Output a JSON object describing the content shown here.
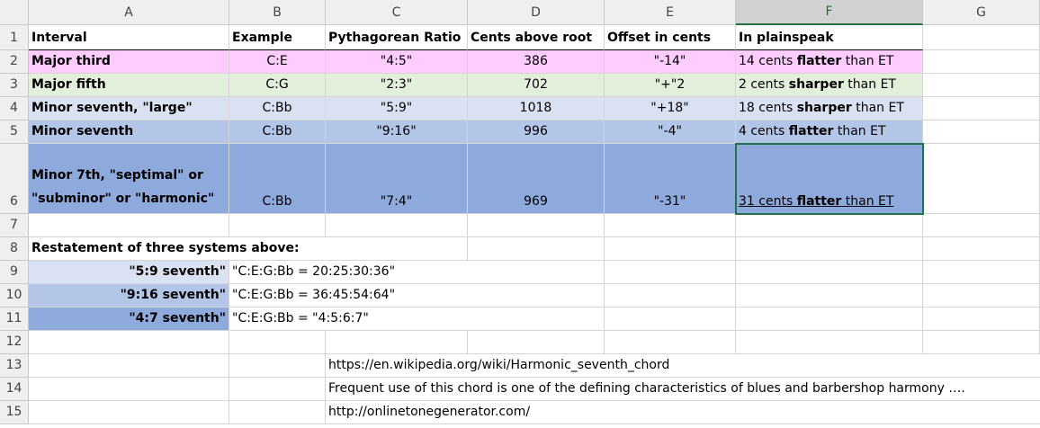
{
  "columns": [
    "A",
    "B",
    "C",
    "D",
    "E",
    "F",
    "G"
  ],
  "row_numbers": [
    "1",
    "2",
    "3",
    "4",
    "5",
    "6",
    "7",
    "8",
    "9",
    "10",
    "11",
    "12",
    "13",
    "14",
    "15"
  ],
  "header": [
    "Interval",
    "Example",
    "Pythagorean Ratio",
    "Cents above root",
    "Offset in cents",
    "In plainspeak"
  ],
  "rows": [
    {
      "interval": "Major third",
      "example": "C:E",
      "ratio": "\"4:5\"",
      "cents": 386,
      "offset": "\"-14\"",
      "plain": {
        "pre": "14 cents ",
        "bold": "flatter",
        "post": " than ET"
      }
    },
    {
      "interval": "Major fifth",
      "example": "C:G",
      "ratio": "\"2:3\"",
      "cents": 702,
      "offset": "\"+\"2",
      "plain": {
        "pre": "2 cents ",
        "bold": "sharper",
        "post": " than ET"
      }
    },
    {
      "interval": "Minor seventh, \"large\"",
      "example": "C:Bb",
      "ratio": "\"5:9\"",
      "cents": 1018,
      "offset": "\"+18\"",
      "plain": {
        "pre": "18 cents ",
        "bold": "sharper",
        "post": " than ET"
      }
    },
    {
      "interval": "Minor seventh",
      "example": "C:Bb",
      "ratio": "\"9:16\"",
      "cents": 996,
      "offset": "\"-4\"",
      "plain": {
        "pre": "4 cents ",
        "bold": "flatter",
        "post": " than ET"
      }
    },
    {
      "interval": [
        "Minor 7th, \"septimal\" or",
        "\"subminor\" or \"harmonic\""
      ],
      "example": "C:Bb",
      "ratio": "\"7:4\"",
      "cents": 969,
      "offset": "\"-31\"",
      "plain": {
        "pre": "31 cents ",
        "bold": "flatter",
        "post": " than ET"
      }
    }
  ],
  "restatement_title": "Restatement of three systems above:",
  "systems": [
    {
      "name": "\"5:9 seventh\"",
      "notes": "\"C:E:G:Bb = 20:25:30:36\""
    },
    {
      "name": "\"9:16 seventh\"",
      "notes": "\"C:E:G:Bb = 36:45:54:64\""
    },
    {
      "name": "\"4:7 seventh\"",
      "notes": "\"C:E:G:Bb = \"4:5:6:7\""
    }
  ],
  "links": [
    "https://en.wikipedia.org/wiki/Harmonic_seventh_chord",
    "Frequent use of this chord is one of the defining characteristics of blues and barbershop harmony ….",
    "http://onlinetonegenerator.com/"
  ]
}
